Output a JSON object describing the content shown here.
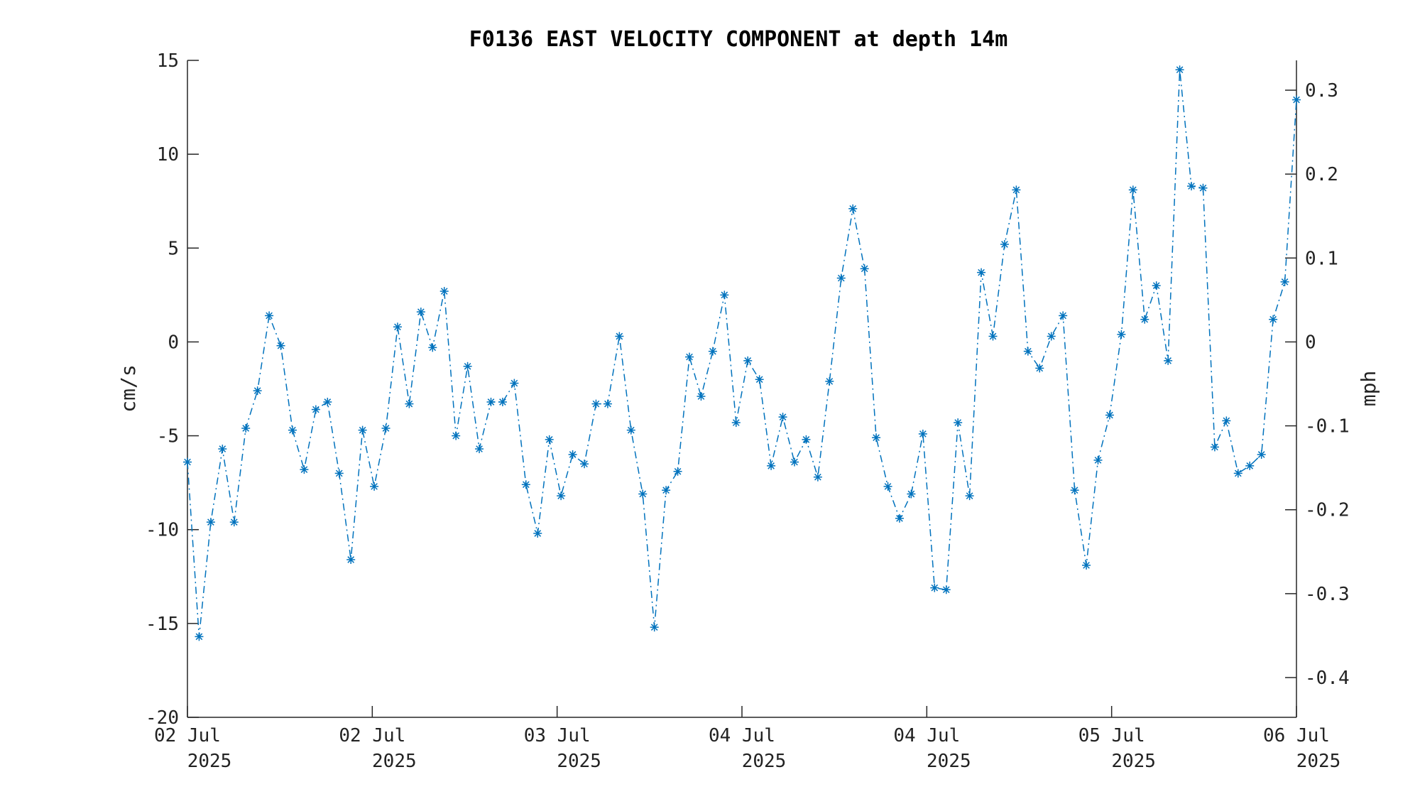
{
  "chart_data": {
    "type": "line",
    "title": "F0136 EAST VELOCITY COMPONENT at depth 14m",
    "ylabel": "cm/s",
    "ylabel_right": "mph",
    "xlabel": "",
    "ylim": [
      -20,
      15
    ],
    "yticks": [
      15,
      10,
      5,
      0,
      -5,
      -10,
      -15,
      -20
    ],
    "yticks_right": [
      "0.3",
      "0.2",
      "0.1",
      "0",
      "-0.1",
      "-0.2",
      "-0.3",
      "-0.4"
    ],
    "xticks": [
      {
        "day": "02 Jul",
        "year": "2025"
      },
      {
        "day": "02 Jul",
        "year": "2025"
      },
      {
        "day": "03 Jul",
        "year": "2025"
      },
      {
        "day": "04 Jul",
        "year": "2025"
      },
      {
        "day": "04 Jul",
        "year": "2025"
      },
      {
        "day": "05 Jul",
        "year": "2025"
      },
      {
        "day": "06 Jul",
        "year": "2025"
      }
    ],
    "grid": false,
    "line_style": "dash-dot",
    "marker": "asterisk",
    "series_color": "#0072BD",
    "series": [
      {
        "values": [
          -6.4,
          -15.7,
          -9.6,
          -5.7,
          -9.6,
          -4.6,
          -2.6,
          1.4,
          -0.2,
          -4.7,
          -6.8,
          -3.6,
          -3.2,
          -7.0,
          -11.6,
          -4.7,
          -7.7,
          -4.6,
          0.8,
          -3.3,
          1.6,
          -0.3,
          2.7,
          -5.0,
          -1.3,
          -5.7,
          -3.2,
          -3.2,
          -2.2,
          -7.6,
          -10.2,
          -5.2,
          -8.2,
          -6.0,
          -6.5,
          -3.3,
          -3.3,
          0.3,
          -4.7,
          -8.1,
          -15.2,
          -7.9,
          -6.9,
          -0.8,
          -2.9,
          -0.5,
          2.5,
          -4.3,
          -1.0,
          -2.0,
          -6.6,
          -4.0,
          -6.4,
          -5.2,
          -7.2,
          -2.1,
          3.4,
          7.1,
          3.9,
          -5.1,
          -7.7,
          -9.4,
          -8.1,
          -4.9,
          -13.1,
          -13.2,
          -4.3,
          -8.2,
          3.7,
          0.3,
          5.2,
          8.1,
          -0.5,
          -1.4,
          0.3,
          1.4,
          -7.9,
          -11.9,
          -6.3,
          -3.9,
          0.4,
          8.1,
          1.2,
          3.0,
          -1.0,
          14.5,
          8.3,
          8.2,
          -5.6,
          -4.2,
          -7.0,
          -6.6,
          -6.0,
          1.2,
          3.2,
          12.9
        ]
      }
    ]
  }
}
